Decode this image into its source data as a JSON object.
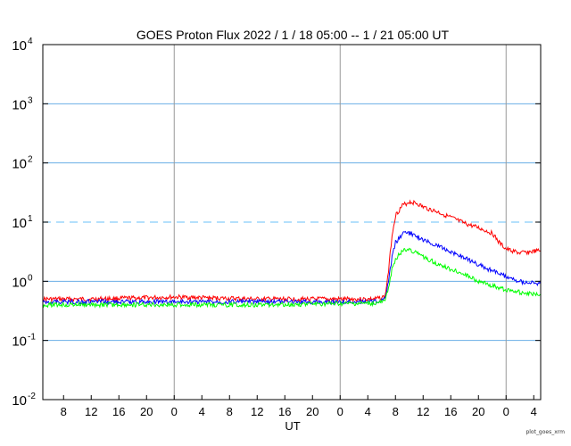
{
  "chart_data": {
    "type": "line",
    "title": "GOES Proton Flux   2022 /  1 / 18   05:00 --  1 / 21   05:00   UT",
    "xlabel": "UT",
    "ylabel": "",
    "y_scale": "log",
    "ylim": [
      0.01,
      10000
    ],
    "x_start": "2022-01-18T05:00",
    "x_end": "2022-01-21T05:00",
    "y_tick_labels": [
      {
        "value": 10000,
        "base": "10",
        "exp": "4"
      },
      {
        "value": 1000,
        "base": "10",
        "exp": "3"
      },
      {
        "value": 100,
        "base": "10",
        "exp": "2"
      },
      {
        "value": 10,
        "base": "10",
        "exp": "1"
      },
      {
        "value": 1,
        "base": "10",
        "exp": "0"
      },
      {
        "value": 0.1,
        "base": "10",
        "exp": "-1"
      },
      {
        "value": 0.01,
        "base": "10",
        "exp": "-2"
      }
    ],
    "x_tick_labels": [
      {
        "x": "2022-01-18T08:00",
        "label": "8"
      },
      {
        "x": "2022-01-18T12:00",
        "label": "12"
      },
      {
        "x": "2022-01-18T16:00",
        "label": "16"
      },
      {
        "x": "2022-01-18T20:00",
        "label": "20"
      },
      {
        "x": "2022-01-19T00:00",
        "label": "0"
      },
      {
        "x": "2022-01-19T04:00",
        "label": "4"
      },
      {
        "x": "2022-01-19T08:00",
        "label": "8"
      },
      {
        "x": "2022-01-19T12:00",
        "label": "12"
      },
      {
        "x": "2022-01-19T16:00",
        "label": "16"
      },
      {
        "x": "2022-01-19T20:00",
        "label": "20"
      },
      {
        "x": "2022-01-20T00:00",
        "label": "0"
      },
      {
        "x": "2022-01-20T04:00",
        "label": "4"
      },
      {
        "x": "2022-01-20T08:00",
        "label": "8"
      },
      {
        "x": "2022-01-20T12:00",
        "label": "12"
      },
      {
        "x": "2022-01-20T16:00",
        "label": "16"
      },
      {
        "x": "2022-01-20T20:00",
        "label": "20"
      },
      {
        "x": "2022-01-21T00:00",
        "label": "0"
      },
      {
        "x": "2022-01-21T04:00",
        "label": "4"
      }
    ],
    "day_lines": [
      "2022-01-19T00:00",
      "2022-01-20T00:00",
      "2022-01-21T00:00"
    ],
    "grid_lines": [
      1000,
      100,
      1,
      0.1
    ],
    "threshold": {
      "value": 10,
      "color": "#87cefa",
      "style": "dashed"
    },
    "series": [
      {
        "color": "#ff0000",
        "points": [
          {
            "x": "2022-01-18T05:00",
            "y": 0.5
          },
          {
            "x": "2022-01-18T12:00",
            "y": 0.5
          },
          {
            "x": "2022-01-18T18:00",
            "y": 0.52
          },
          {
            "x": "2022-01-19T00:00",
            "y": 0.54
          },
          {
            "x": "2022-01-19T06:00",
            "y": 0.52
          },
          {
            "x": "2022-01-19T12:00",
            "y": 0.5
          },
          {
            "x": "2022-01-19T18:00",
            "y": 0.5
          },
          {
            "x": "2022-01-20T00:00",
            "y": 0.5
          },
          {
            "x": "2022-01-20T05:00",
            "y": 0.5
          },
          {
            "x": "2022-01-20T06:30",
            "y": 0.55
          },
          {
            "x": "2022-01-20T07:00",
            "y": 1.5
          },
          {
            "x": "2022-01-20T07:30",
            "y": 6
          },
          {
            "x": "2022-01-20T08:00",
            "y": 13
          },
          {
            "x": "2022-01-20T09:00",
            "y": 19
          },
          {
            "x": "2022-01-20T10:00",
            "y": 22
          },
          {
            "x": "2022-01-20T11:00",
            "y": 21
          },
          {
            "x": "2022-01-20T12:00",
            "y": 18
          },
          {
            "x": "2022-01-20T14:00",
            "y": 15
          },
          {
            "x": "2022-01-20T16:00",
            "y": 12
          },
          {
            "x": "2022-01-20T18:00",
            "y": 9.5
          },
          {
            "x": "2022-01-20T20:00",
            "y": 8
          },
          {
            "x": "2022-01-20T22:00",
            "y": 6.5
          },
          {
            "x": "2022-01-20T23:00",
            "y": 4.5
          },
          {
            "x": "2022-01-21T00:00",
            "y": 3.5
          },
          {
            "x": "2022-01-21T02:00",
            "y": 3
          },
          {
            "x": "2022-01-21T05:00",
            "y": 3.3
          }
        ]
      },
      {
        "color": "#0000ff",
        "points": [
          {
            "x": "2022-01-18T05:00",
            "y": 0.45
          },
          {
            "x": "2022-01-18T18:00",
            "y": 0.45
          },
          {
            "x": "2022-01-19T12:00",
            "y": 0.45
          },
          {
            "x": "2022-01-20T05:00",
            "y": 0.45
          },
          {
            "x": "2022-01-20T06:30",
            "y": 0.5
          },
          {
            "x": "2022-01-20T07:00",
            "y": 1.0
          },
          {
            "x": "2022-01-20T07:30",
            "y": 2.5
          },
          {
            "x": "2022-01-20T08:00",
            "y": 4.5
          },
          {
            "x": "2022-01-20T09:00",
            "y": 6.3
          },
          {
            "x": "2022-01-20T10:00",
            "y": 6.5
          },
          {
            "x": "2022-01-20T11:00",
            "y": 5.8
          },
          {
            "x": "2022-01-20T12:00",
            "y": 5
          },
          {
            "x": "2022-01-20T14:00",
            "y": 4
          },
          {
            "x": "2022-01-20T16:00",
            "y": 3.2
          },
          {
            "x": "2022-01-20T18:00",
            "y": 2.5
          },
          {
            "x": "2022-01-20T20:00",
            "y": 1.9
          },
          {
            "x": "2022-01-20T22:00",
            "y": 1.5
          },
          {
            "x": "2022-01-21T00:00",
            "y": 1.2
          },
          {
            "x": "2022-01-21T02:00",
            "y": 1.0
          },
          {
            "x": "2022-01-21T05:00",
            "y": 0.9
          }
        ]
      },
      {
        "color": "#00ff00",
        "points": [
          {
            "x": "2022-01-18T05:00",
            "y": 0.4
          },
          {
            "x": "2022-01-18T18:00",
            "y": 0.4
          },
          {
            "x": "2022-01-19T12:00",
            "y": 0.4
          },
          {
            "x": "2022-01-20T05:00",
            "y": 0.42
          },
          {
            "x": "2022-01-20T06:30",
            "y": 0.45
          },
          {
            "x": "2022-01-20T07:00",
            "y": 0.8
          },
          {
            "x": "2022-01-20T07:30",
            "y": 1.6
          },
          {
            "x": "2022-01-20T08:00",
            "y": 2.4
          },
          {
            "x": "2022-01-20T09:00",
            "y": 3.2
          },
          {
            "x": "2022-01-20T10:00",
            "y": 3.5
          },
          {
            "x": "2022-01-20T11:00",
            "y": 3.0
          },
          {
            "x": "2022-01-20T12:00",
            "y": 2.6
          },
          {
            "x": "2022-01-20T14:00",
            "y": 2.0
          },
          {
            "x": "2022-01-20T16:00",
            "y": 1.6
          },
          {
            "x": "2022-01-20T18:00",
            "y": 1.3
          },
          {
            "x": "2022-01-20T20:00",
            "y": 1.0
          },
          {
            "x": "2022-01-20T22:00",
            "y": 0.85
          },
          {
            "x": "2022-01-21T00:00",
            "y": 0.72
          },
          {
            "x": "2022-01-21T02:00",
            "y": 0.65
          },
          {
            "x": "2022-01-21T05:00",
            "y": 0.6
          }
        ]
      }
    ],
    "grid": true,
    "legend": "none"
  },
  "credit": "plot_goes_xrm"
}
